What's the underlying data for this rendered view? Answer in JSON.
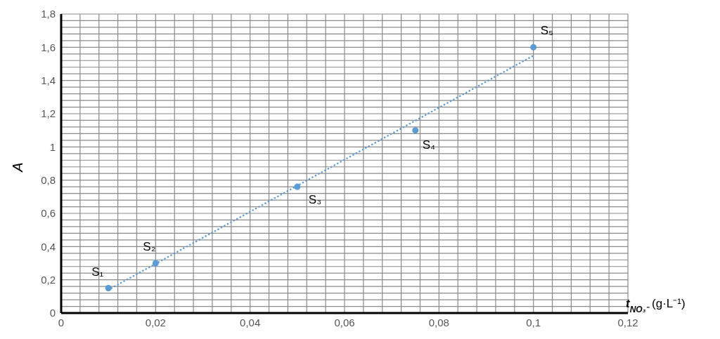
{
  "chart_data": {
    "type": "scatter",
    "xlabel": "t$_{NO₃⁻}$ (g·L⁻¹)",
    "ylabel": "A",
    "xlim": [
      0,
      0.12
    ],
    "ylim": [
      0,
      1.8
    ],
    "xticks": [
      0,
      {
        "value": 0.004,
        "label": null
      },
      {
        "value": 0.008,
        "label": null
      },
      {
        "value": 0.012,
        "label": null
      },
      {
        "value": 0.016,
        "label": null
      },
      {
        "value": 0.02,
        "label": "0,02"
      },
      {
        "value": 0.024,
        "label": null
      },
      {
        "value": 0.028,
        "label": null
      },
      {
        "value": 0.032,
        "label": null
      },
      {
        "value": 0.036,
        "label": null
      },
      {
        "value": 0.04,
        "label": "0,04"
      },
      {
        "value": 0.044,
        "label": null
      },
      {
        "value": 0.048,
        "label": null
      },
      {
        "value": 0.052,
        "label": null
      },
      {
        "value": 0.056,
        "label": null
      },
      {
        "value": 0.06,
        "label": "0,06"
      },
      {
        "value": 0.064,
        "label": null
      },
      {
        "value": 0.068,
        "label": null
      },
      {
        "value": 0.072,
        "label": null
      },
      {
        "value": 0.076,
        "label": null
      },
      {
        "value": 0.08,
        "label": "0,08"
      },
      {
        "value": 0.084,
        "label": null
      },
      {
        "value": 0.088,
        "label": null
      },
      {
        "value": 0.092,
        "label": null
      },
      {
        "value": 0.096,
        "label": null
      },
      {
        "value": 0.1,
        "label": "0,1"
      },
      {
        "value": 0.104,
        "label": null
      },
      {
        "value": 0.108,
        "label": null
      },
      {
        "value": 0.112,
        "label": null
      },
      {
        "value": 0.116,
        "label": null
      },
      {
        "value": 0.12,
        "label": "0,12"
      }
    ],
    "yticks": [
      0,
      {
        "value": 0.04,
        "label": null
      },
      {
        "value": 0.08,
        "label": null
      },
      {
        "value": 0.12,
        "label": null
      },
      {
        "value": 0.16,
        "label": null
      },
      {
        "value": 0.2,
        "label": "0,2"
      },
      {
        "value": 0.24,
        "label": null
      },
      {
        "value": 0.28,
        "label": null
      },
      {
        "value": 0.32,
        "label": null
      },
      {
        "value": 0.36,
        "label": null
      },
      {
        "value": 0.4,
        "label": "0,4"
      },
      {
        "value": 0.44,
        "label": null
      },
      {
        "value": 0.48,
        "label": null
      },
      {
        "value": 0.52,
        "label": null
      },
      {
        "value": 0.56,
        "label": null
      },
      {
        "value": 0.6,
        "label": "0,6"
      },
      {
        "value": 0.64,
        "label": null
      },
      {
        "value": 0.68,
        "label": null
      },
      {
        "value": 0.72,
        "label": null
      },
      {
        "value": 0.76,
        "label": null
      },
      {
        "value": 0.8,
        "label": "0,8"
      },
      {
        "value": 0.84,
        "label": null
      },
      {
        "value": 0.88,
        "label": null
      },
      {
        "value": 0.92,
        "label": null
      },
      {
        "value": 0.96,
        "label": null
      },
      1,
      {
        "value": 1.04,
        "label": null
      },
      {
        "value": 1.08,
        "label": null
      },
      {
        "value": 1.12,
        "label": null
      },
      {
        "value": 1.16,
        "label": null
      },
      {
        "value": 1.2,
        "label": "1,2"
      },
      {
        "value": 1.24,
        "label": null
      },
      {
        "value": 1.28,
        "label": null
      },
      {
        "value": 1.32,
        "label": null
      },
      {
        "value": 1.36,
        "label": null
      },
      {
        "value": 1.4,
        "label": "1,4"
      },
      {
        "value": 1.44,
        "label": null
      },
      {
        "value": 1.48,
        "label": null
      },
      {
        "value": 1.52,
        "label": null
      },
      {
        "value": 1.56,
        "label": null
      },
      {
        "value": 1.6,
        "label": "1,6"
      },
      {
        "value": 1.64,
        "label": null
      },
      {
        "value": 1.68,
        "label": null
      },
      {
        "value": 1.72,
        "label": null
      },
      {
        "value": 1.76,
        "label": null
      },
      {
        "value": 1.8,
        "label": "1,8"
      }
    ],
    "grid": true,
    "legend": false,
    "series": [
      {
        "color": "#5b9bd5",
        "marker": "circle",
        "x": [
          0.01,
          0.02,
          0.05,
          0.075,
          0.1
        ],
        "values": [
          0.15,
          0.3,
          0.76,
          1.1,
          1.6
        ]
      },
      {
        "type": "line",
        "color": "#5b9bd5",
        "marker": "none",
        "line_style": "dotted",
        "x": [
          0.01,
          0.1
        ],
        "values": [
          0.14,
          1.55
        ]
      }
    ],
    "annotations": [
      {
        "text": "S₁",
        "x": 0.01,
        "y": 0.15
      },
      {
        "text": "S₂",
        "x": 0.02,
        "y": 0.3
      },
      {
        "text": "S₃",
        "x": 0.05,
        "y": 0.76
      },
      {
        "text": "S₄",
        "x": 0.075,
        "y": 1.1
      },
      {
        "text": "S₅",
        "x": 0.1,
        "y": 1.6
      }
    ]
  }
}
